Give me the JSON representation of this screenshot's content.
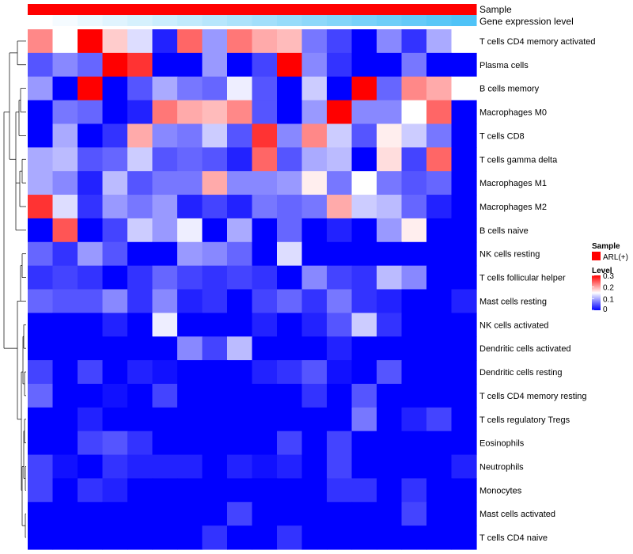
{
  "chart_data": {
    "type": "heatmap",
    "title": "",
    "annotations": [
      {
        "name": "Sample",
        "values_description": "all columns ARL(+)"
      },
      {
        "name": "Gene expression level",
        "values_description": "gradient low to high across columns"
      }
    ],
    "legend": {
      "sample_title": "Sample",
      "sample_entries": [
        {
          "label": "ARL(+)",
          "color": "#ff0000"
        }
      ],
      "level_title": "Level",
      "level_ticks": [
        "0.3",
        "0.2",
        "0.1",
        "0"
      ],
      "level_range": [
        0,
        0.3
      ]
    },
    "row_labels": [
      "T cells CD4 memory activated",
      "Plasma cells",
      "B cells memory",
      "Macrophages M0",
      "T cells CD8",
      "T cells gamma delta",
      "Macrophages M1",
      "Macrophages M2",
      "B cells naive",
      "NK cells resting",
      "T cells follicular helper",
      "Mast cells resting",
      "NK cells activated",
      "Dendritic cells activated",
      "Dendritic cells resting",
      "T cells CD4 memory resting",
      "T cells regulatory  Tregs",
      "Eosinophils",
      "Neutrophils",
      "Monocytes",
      "Mast cells activated",
      "T cells CD4 naive"
    ],
    "n_columns": 18,
    "matrix": [
      [
        0.22,
        0.15,
        0.3,
        0.18,
        0.13,
        0.02,
        0.24,
        0.09,
        0.23,
        0.2,
        0.19,
        0.07,
        0.04,
        0.0,
        0.08,
        0.03,
        0.1,
        0.15
      ],
      [
        0.05,
        0.08,
        0.06,
        0.3,
        0.27,
        0.0,
        0.0,
        0.09,
        0.0,
        0.04,
        0.3,
        0.08,
        0.03,
        0.0,
        0.0,
        0.07,
        0.0,
        0.0
      ],
      [
        0.09,
        0.0,
        0.3,
        0.0,
        0.05,
        0.1,
        0.07,
        0.06,
        0.14,
        0.05,
        0.0,
        0.12,
        0.0,
        0.3,
        0.06,
        0.22,
        0.2,
        0.15
      ],
      [
        0.0,
        0.07,
        0.06,
        0.0,
        0.02,
        0.23,
        0.2,
        0.19,
        0.22,
        0.05,
        0.0,
        0.09,
        0.3,
        0.08,
        0.08,
        0.15,
        0.24,
        0.0
      ],
      [
        0.0,
        0.1,
        0.0,
        0.03,
        0.2,
        0.08,
        0.07,
        0.12,
        0.05,
        0.27,
        0.08,
        0.22,
        0.12,
        0.05,
        0.16,
        0.12,
        0.07,
        0.0
      ],
      [
        0.1,
        0.11,
        0.05,
        0.06,
        0.12,
        0.05,
        0.06,
        0.05,
        0.02,
        0.24,
        0.05,
        0.1,
        0.11,
        0.0,
        0.17,
        0.04,
        0.24,
        0.0
      ],
      [
        0.1,
        0.08,
        0.02,
        0.11,
        0.05,
        0.07,
        0.07,
        0.2,
        0.08,
        0.08,
        0.09,
        0.16,
        0.07,
        0.15,
        0.07,
        0.05,
        0.06,
        0.0
      ],
      [
        0.27,
        0.13,
        0.03,
        0.09,
        0.07,
        0.09,
        0.02,
        0.04,
        0.02,
        0.07,
        0.06,
        0.07,
        0.2,
        0.12,
        0.11,
        0.06,
        0.02,
        0.0
      ],
      [
        0.0,
        0.25,
        0.0,
        0.04,
        0.12,
        0.09,
        0.14,
        0.0,
        0.1,
        0.0,
        0.06,
        0.0,
        0.02,
        0.0,
        0.09,
        0.16,
        0.0,
        0.0
      ],
      [
        0.06,
        0.03,
        0.09,
        0.05,
        0.0,
        0.0,
        0.09,
        0.08,
        0.06,
        0.0,
        0.13,
        0.0,
        0.0,
        0.0,
        0.0,
        0.0,
        0.0,
        0.0
      ],
      [
        0.03,
        0.04,
        0.03,
        0.0,
        0.03,
        0.06,
        0.04,
        0.03,
        0.04,
        0.03,
        0.0,
        0.08,
        0.04,
        0.03,
        0.11,
        0.08,
        0.0,
        0.0
      ],
      [
        0.06,
        0.05,
        0.05,
        0.08,
        0.03,
        0.08,
        0.02,
        0.03,
        0.0,
        0.04,
        0.06,
        0.03,
        0.07,
        0.03,
        0.02,
        0.0,
        0.0,
        0.02
      ],
      [
        0.0,
        0.0,
        0.0,
        0.02,
        0.0,
        0.14,
        0.0,
        0.0,
        0.0,
        0.02,
        0.0,
        0.02,
        0.05,
        0.12,
        0.03,
        0.0,
        0.0,
        0.0
      ],
      [
        0.0,
        0.0,
        0.0,
        0.0,
        0.0,
        0.0,
        0.08,
        0.04,
        0.11,
        0.0,
        0.0,
        0.0,
        0.02,
        0.0,
        0.0,
        0.0,
        0.0,
        0.0
      ],
      [
        0.04,
        0.0,
        0.04,
        0.0,
        0.02,
        0.01,
        0.0,
        0.0,
        0.0,
        0.02,
        0.03,
        0.05,
        0.01,
        0.0,
        0.05,
        0.0,
        0.0,
        0.0
      ],
      [
        0.06,
        0.0,
        0.0,
        0.01,
        0.0,
        0.04,
        0.0,
        0.0,
        0.0,
        0.0,
        0.0,
        0.03,
        0.0,
        0.05,
        0.0,
        0.0,
        0.0,
        0.0
      ],
      [
        0.0,
        0.0,
        0.02,
        0.0,
        0.0,
        0.0,
        0.0,
        0.0,
        0.0,
        0.0,
        0.0,
        0.0,
        0.0,
        0.07,
        0.0,
        0.02,
        0.04,
        0.0
      ],
      [
        0.0,
        0.0,
        0.04,
        0.05,
        0.03,
        0.0,
        0.0,
        0.0,
        0.0,
        0.0,
        0.04,
        0.0,
        0.04,
        0.0,
        0.0,
        0.0,
        0.0,
        0.0
      ],
      [
        0.04,
        0.01,
        0.0,
        0.03,
        0.02,
        0.02,
        0.02,
        0.0,
        0.02,
        0.01,
        0.02,
        0.0,
        0.04,
        0.0,
        0.0,
        0.0,
        0.0,
        0.02
      ],
      [
        0.04,
        0.0,
        0.03,
        0.02,
        0.0,
        0.0,
        0.0,
        0.0,
        0.0,
        0.0,
        0.0,
        0.0,
        0.03,
        0.03,
        0.0,
        0.03,
        0.0,
        0.0
      ],
      [
        0.0,
        0.0,
        0.0,
        0.0,
        0.0,
        0.0,
        0.0,
        0.0,
        0.04,
        0.0,
        0.0,
        0.0,
        0.0,
        0.0,
        0.0,
        0.04,
        0.0,
        0.0
      ],
      [
        0.0,
        0.0,
        0.0,
        0.0,
        0.0,
        0.0,
        0.0,
        0.03,
        0.0,
        0.0,
        0.03,
        0.0,
        0.0,
        0.0,
        0.0,
        0.0,
        0.0,
        0.0
      ]
    ],
    "colors": {
      "low": "#0000ff",
      "mid": "#ffffff",
      "high": "#ff0000",
      "sample_annotation": "#ff0000",
      "level_annotation_low": "#ffffff",
      "level_annotation_high": "#4fc3f7",
      "dendrogram": "#000000"
    }
  }
}
